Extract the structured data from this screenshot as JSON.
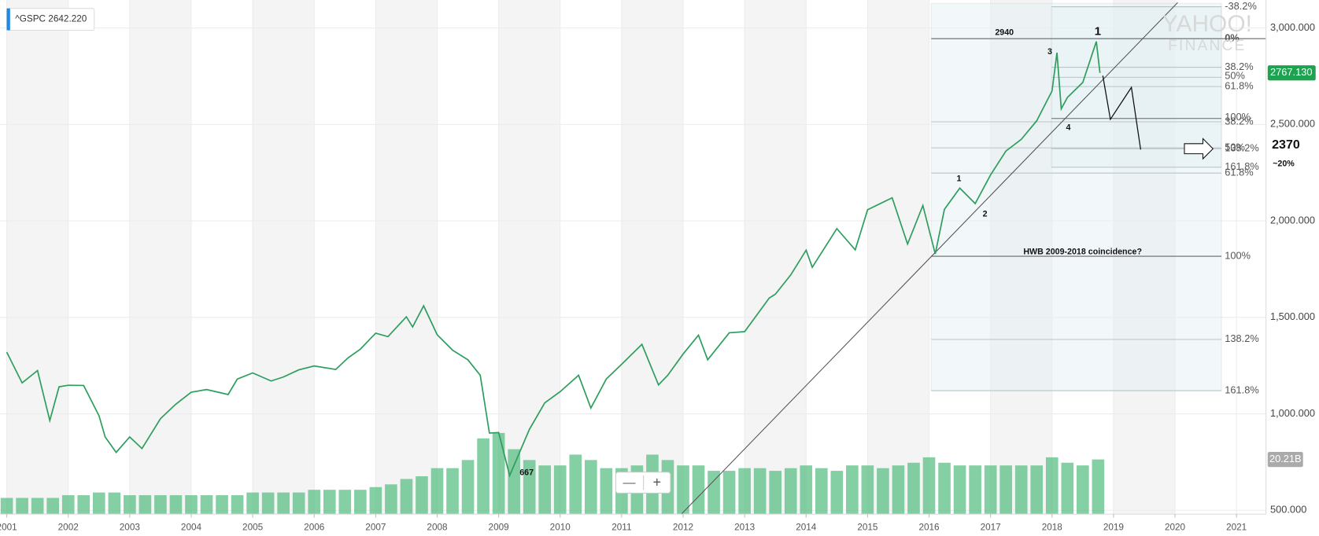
{
  "chart_data": {
    "type": "line",
    "ticker_label": "^GSPC 2642.220",
    "xlim": [
      2000.89,
      2021.48
    ],
    "xticks": [
      2001,
      2002,
      2003,
      2004,
      2005,
      2006,
      2007,
      2008,
      2009,
      2010,
      2011,
      2012,
      2013,
      2014,
      2015,
      2016,
      2017,
      2018,
      2019,
      2020,
      2021
    ],
    "ylim": [
      480,
      3145
    ],
    "yticks": [
      {
        "value": 500,
        "label": "500.000"
      },
      {
        "value": 1000,
        "label": "1,000.000"
      },
      {
        "value": 1500,
        "label": "1,500.000"
      },
      {
        "value": 2000,
        "label": "2,000.000"
      },
      {
        "value": 2500,
        "label": "2,500.000"
      },
      {
        "value": 3000,
        "label": "3,000.000"
      }
    ],
    "y2lim": [
      0,
      190
    ],
    "grid": true,
    "series": [
      {
        "name": "^GSPC",
        "color": "#2e9e5e",
        "x": [
          2001.0,
          2001.25,
          2001.5,
          2001.7,
          2001.85,
          2002.0,
          2002.25,
          2002.5,
          2002.6,
          2002.78,
          2003.0,
          2003.2,
          2003.5,
          2003.75,
          2004.0,
          2004.25,
          2004.6,
          2004.75,
          2005.0,
          2005.3,
          2005.5,
          2005.75,
          2006.0,
          2006.35,
          2006.55,
          2006.75,
          2007.0,
          2007.2,
          2007.5,
          2007.6,
          2007.78,
          2008.0,
          2008.25,
          2008.5,
          2008.7,
          2008.85,
          2009.0,
          2009.18,
          2009.5,
          2009.75,
          2010.0,
          2010.3,
          2010.5,
          2010.75,
          2011.0,
          2011.33,
          2011.6,
          2011.75,
          2012.0,
          2012.25,
          2012.4,
          2012.75,
          2013.0,
          2013.4,
          2013.5,
          2013.75,
          2014.0,
          2014.1,
          2014.5,
          2014.8,
          2015.0,
          2015.4,
          2015.65,
          2015.9,
          2016.1,
          2016.25,
          2016.5,
          2016.75,
          2017.0,
          2017.25,
          2017.5,
          2017.75,
          2018.0,
          2018.08,
          2018.15,
          2018.25,
          2018.5,
          2018.72,
          2018.78
        ],
        "values": [
          1320,
          1160,
          1224,
          965,
          1140,
          1148,
          1147,
          990,
          880,
          800,
          880,
          820,
          975,
          1050,
          1112,
          1126,
          1100,
          1180,
          1212,
          1170,
          1191,
          1228,
          1248,
          1230,
          1290,
          1335,
          1418,
          1400,
          1503,
          1450,
          1560,
          1410,
          1330,
          1280,
          1200,
          900,
          903,
          680,
          919,
          1057,
          1115,
          1200,
          1030,
          1180,
          1257,
          1360,
          1150,
          1200,
          1310,
          1408,
          1280,
          1420,
          1426,
          1600,
          1620,
          1720,
          1848,
          1760,
          1960,
          1850,
          2058,
          2120,
          1880,
          2080,
          1829,
          2060,
          2170,
          2090,
          2238,
          2362,
          2423,
          2519,
          2673,
          2872,
          2581,
          2640,
          2718,
          2930,
          2767
        ]
      },
      {
        "name": "Volume",
        "color": "#5bbf86",
        "axis": "y2",
        "x": [
          2001.0,
          2001.25,
          2001.5,
          2001.75,
          2002.0,
          2002.25,
          2002.5,
          2002.75,
          2003.0,
          2003.25,
          2003.5,
          2003.75,
          2004.0,
          2004.25,
          2004.5,
          2004.75,
          2005.0,
          2005.25,
          2005.5,
          2005.75,
          2006.0,
          2006.25,
          2006.5,
          2006.75,
          2007.0,
          2007.25,
          2007.5,
          2007.75,
          2008.0,
          2008.25,
          2008.5,
          2008.75,
          2009.0,
          2009.25,
          2009.5,
          2009.75,
          2010.0,
          2010.25,
          2010.5,
          2010.75,
          2011.0,
          2011.25,
          2011.5,
          2011.75,
          2012.0,
          2012.25,
          2012.5,
          2012.75,
          2013.0,
          2013.25,
          2013.5,
          2013.75,
          2014.0,
          2014.25,
          2014.5,
          2014.75,
          2015.0,
          2015.25,
          2015.5,
          2015.75,
          2016.0,
          2016.25,
          2016.5,
          2016.75,
          2017.0,
          2017.25,
          2017.5,
          2017.75,
          2018.0,
          2018.25,
          2018.5,
          2018.75
        ],
        "values": [
          6,
          6,
          6,
          6,
          7,
          7,
          8,
          8,
          7,
          7,
          7,
          7,
          7,
          7,
          7,
          7,
          8,
          8,
          8,
          8,
          9,
          9,
          9,
          9,
          10,
          11,
          13,
          14,
          17,
          17,
          20,
          28,
          30,
          24,
          20,
          18,
          18,
          22,
          20,
          17,
          17,
          18,
          22,
          20,
          18,
          18,
          16,
          16,
          17,
          17,
          16,
          17,
          18,
          17,
          16,
          18,
          18,
          17,
          18,
          19,
          21,
          19,
          18,
          18,
          18,
          18,
          18,
          18,
          21,
          19,
          18,
          20.21
        ]
      }
    ],
    "last_price": {
      "value": 2767.13,
      "label": "2767.130"
    },
    "last_volume": {
      "value": 20.21,
      "label": "20.21B"
    },
    "watermark": [
      "YAHOO!",
      "FINANCE"
    ],
    "annotations": {
      "high": {
        "value": 2940,
        "label": "2940"
      },
      "low": {
        "value": 667,
        "label": "667"
      },
      "target": {
        "value": 2370,
        "label": "2370"
      },
      "target_pct": "~20%",
      "hwb": "HWB 2009-2018  coincidence?",
      "waves": [
        "1",
        "3",
        "4",
        "1",
        "2"
      ],
      "fib_outer": [
        "0%",
        "38.2%",
        "50%",
        "61.8%",
        "100%",
        "138.2%",
        "161.8%"
      ],
      "fib_inner": [
        "-38.2%",
        "38.2%",
        "50%",
        "61.8%",
        "100%",
        "138.2%",
        "161.8%"
      ]
    },
    "zoom": [
      "—",
      "+"
    ]
  }
}
